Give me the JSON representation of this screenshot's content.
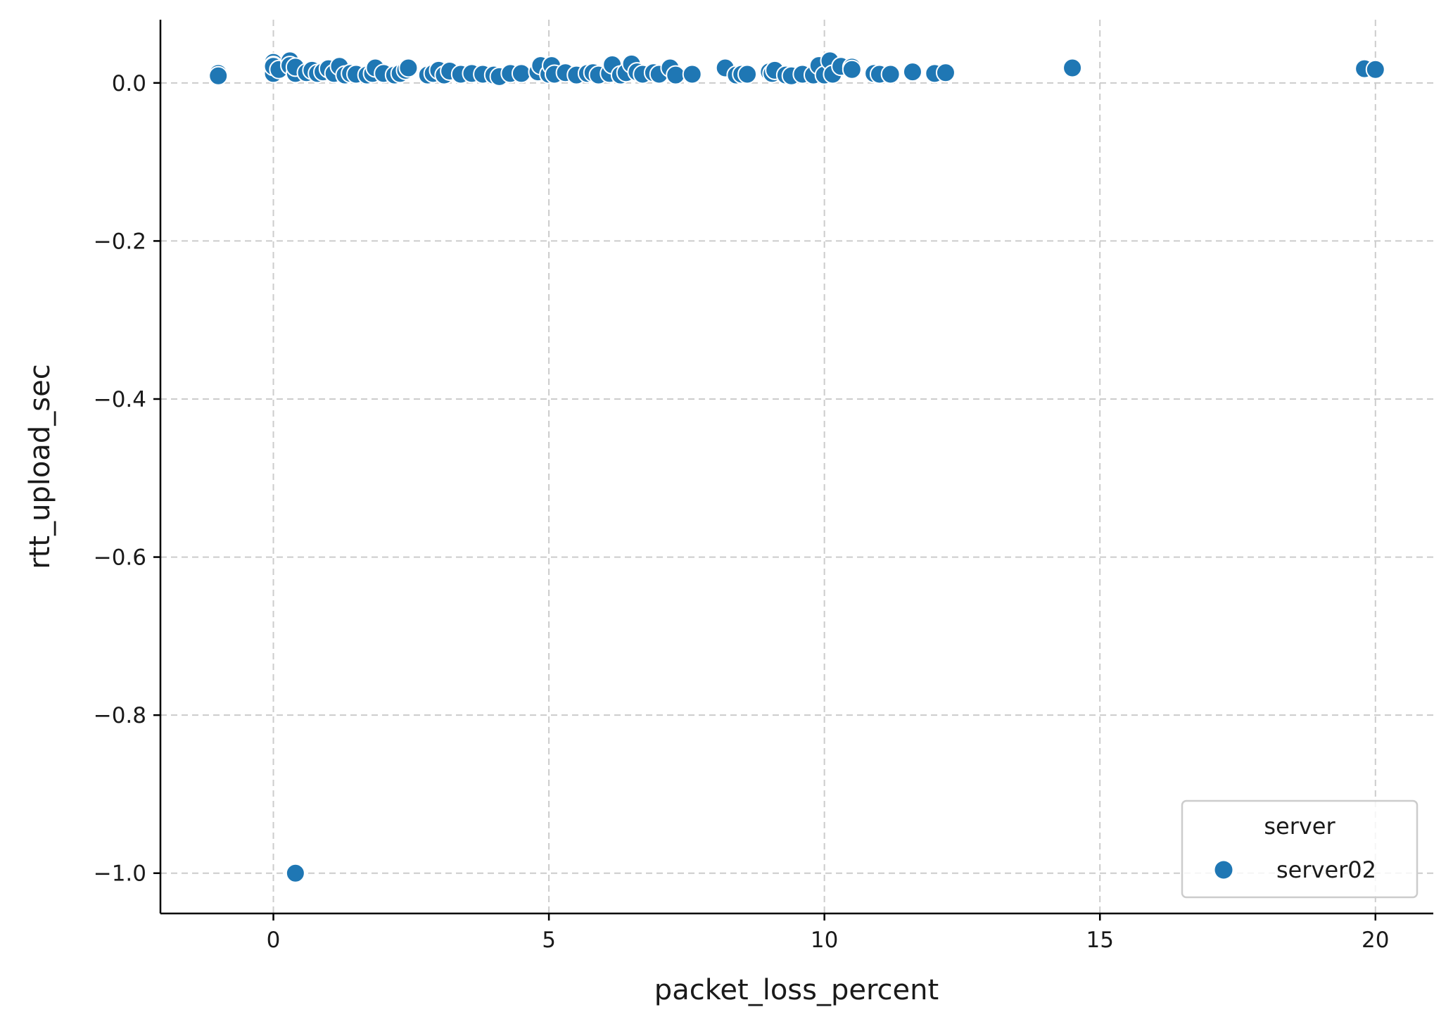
{
  "chart_data": {
    "type": "scatter",
    "xlabel": "packet_loss_percent",
    "ylabel": "rtt_upload_sec",
    "xlim": [
      -2.05,
      21.05
    ],
    "ylim": [
      -1.051,
      0.08
    ],
    "xticks": [
      0,
      5,
      10,
      15,
      20
    ],
    "xtick_labels": [
      "0",
      "5",
      "10",
      "15",
      "20"
    ],
    "yticks": [
      0.0,
      -0.2,
      -0.4,
      -0.6,
      -0.8,
      -1.0
    ],
    "ytick_labels": [
      "0.0",
      "−0.2",
      "−0.4",
      "−0.6",
      "−0.8",
      "−1.0"
    ],
    "grid": true,
    "legend": {
      "title": "server",
      "placement": "lower-right",
      "entries": [
        "server02"
      ]
    },
    "series": [
      {
        "name": "server02",
        "color": "#1f77b4",
        "points": [
          [
            -1.0,
            0.012
          ],
          [
            -1.0,
            0.009
          ],
          [
            0.0,
            0.026
          ],
          [
            0.0,
            0.022
          ],
          [
            0.0,
            0.018
          ],
          [
            0.0,
            0.012
          ],
          [
            0.0,
            0.021
          ],
          [
            0.1,
            0.017
          ],
          [
            0.3,
            0.028
          ],
          [
            0.3,
            0.022
          ],
          [
            0.4,
            0.012
          ],
          [
            0.4,
            0.02
          ],
          [
            0.4,
            -1.0
          ],
          [
            0.6,
            0.013
          ],
          [
            0.7,
            0.016
          ],
          [
            0.8,
            0.012
          ],
          [
            0.9,
            0.014
          ],
          [
            1.0,
            0.018
          ],
          [
            1.1,
            0.012
          ],
          [
            1.2,
            0.021
          ],
          [
            1.3,
            0.01
          ],
          [
            1.4,
            0.012
          ],
          [
            1.5,
            0.011
          ],
          [
            1.7,
            0.01
          ],
          [
            1.8,
            0.012
          ],
          [
            1.85,
            0.019
          ],
          [
            2.0,
            0.012
          ],
          [
            2.2,
            0.01
          ],
          [
            2.3,
            0.012
          ],
          [
            2.4,
            0.016
          ],
          [
            2.45,
            0.019
          ],
          [
            2.8,
            0.01
          ],
          [
            2.9,
            0.012
          ],
          [
            3.0,
            0.016
          ],
          [
            3.1,
            0.01
          ],
          [
            3.2,
            0.015
          ],
          [
            3.4,
            0.011
          ],
          [
            3.6,
            0.012
          ],
          [
            3.8,
            0.011
          ],
          [
            4.0,
            0.01
          ],
          [
            4.1,
            0.008
          ],
          [
            4.3,
            0.012
          ],
          [
            4.5,
            0.012
          ],
          [
            4.8,
            0.014
          ],
          [
            4.85,
            0.022
          ],
          [
            5.0,
            0.011
          ],
          [
            5.05,
            0.022
          ],
          [
            5.1,
            0.011
          ],
          [
            5.3,
            0.013
          ],
          [
            5.5,
            0.01
          ],
          [
            5.7,
            0.012
          ],
          [
            5.8,
            0.013
          ],
          [
            5.9,
            0.01
          ],
          [
            6.1,
            0.012
          ],
          [
            6.15,
            0.023
          ],
          [
            6.3,
            0.01
          ],
          [
            6.4,
            0.013
          ],
          [
            6.5,
            0.024
          ],
          [
            6.6,
            0.014
          ],
          [
            6.7,
            0.011
          ],
          [
            6.9,
            0.013
          ],
          [
            7.0,
            0.011
          ],
          [
            7.2,
            0.019
          ],
          [
            7.3,
            0.01
          ],
          [
            7.6,
            0.011
          ],
          [
            8.2,
            0.019
          ],
          [
            8.4,
            0.01
          ],
          [
            8.5,
            0.011
          ],
          [
            8.6,
            0.011
          ],
          [
            9.0,
            0.014
          ],
          [
            9.05,
            0.012
          ],
          [
            9.1,
            0.016
          ],
          [
            9.3,
            0.01
          ],
          [
            9.4,
            0.009
          ],
          [
            9.6,
            0.011
          ],
          [
            9.8,
            0.01
          ],
          [
            9.9,
            0.022
          ],
          [
            10.0,
            0.01
          ],
          [
            10.1,
            0.028
          ],
          [
            10.15,
            0.011
          ],
          [
            10.3,
            0.021
          ],
          [
            10.5,
            0.02
          ],
          [
            10.5,
            0.017
          ],
          [
            10.9,
            0.012
          ],
          [
            11.0,
            0.011
          ],
          [
            11.2,
            0.011
          ],
          [
            11.6,
            0.014
          ],
          [
            12.0,
            0.012
          ],
          [
            12.2,
            0.013
          ],
          [
            14.5,
            0.019
          ],
          [
            19.8,
            0.018
          ],
          [
            20.0,
            0.017
          ]
        ]
      }
    ]
  }
}
